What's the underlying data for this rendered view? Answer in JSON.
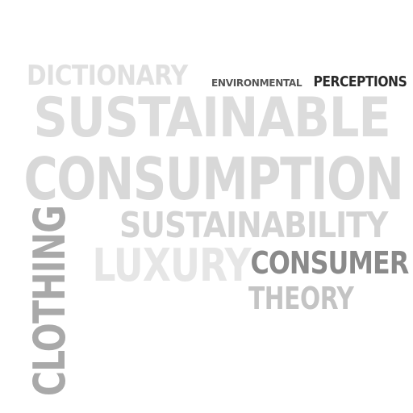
{
  "cloud": {
    "words": {
      "dictionary": {
        "text": "DICTIONARY",
        "color": "#e0e0e0"
      },
      "environmental": {
        "text": "ENVIRONMENTAL",
        "color": "#555555"
      },
      "perceptions": {
        "text": "PERCEPTIONS",
        "color": "#2a2a2a"
      },
      "sustainable": {
        "text": "SUSTAINABLE",
        "color": "#dcdcdc"
      },
      "consumption": {
        "text": "CONSUMPTION",
        "color": "#d8d8d8"
      },
      "sustainability": {
        "text": "SUSTAINABILITY",
        "color": "#d4d4d4"
      },
      "luxury": {
        "text": "LUXURY",
        "color": "#e6e6e6"
      },
      "consumer": {
        "text": "CONSUMER",
        "color": "#8a8a8a"
      },
      "theory": {
        "text": "THEORY",
        "color": "#c4c4c4"
      },
      "clothing": {
        "text": "CLOTHING",
        "color": "#a9a9a9"
      }
    }
  }
}
